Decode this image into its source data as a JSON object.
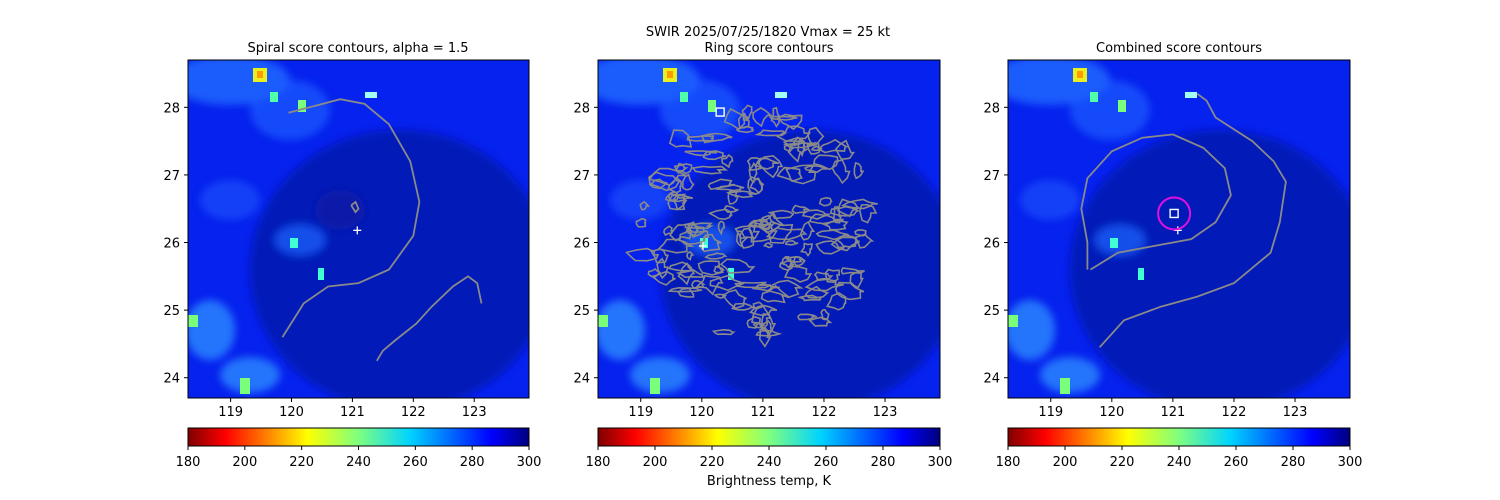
{
  "figure": {
    "suptitle": "SWIR  2025/07/25/1820    Vmax = 25 kt"
  },
  "chart_data": [
    {
      "type": "heatmap",
      "title": "Spiral score contours, alpha =  1.5",
      "xlim": [
        118.3,
        123.9
      ],
      "ylim": [
        23.7,
        28.7
      ],
      "xticks": [
        119,
        120,
        121,
        122,
        123
      ],
      "yticks": [
        24,
        25,
        26,
        27,
        28
      ],
      "colorbar": {
        "ticks": [
          180,
          200,
          220,
          240,
          260,
          280,
          300
        ],
        "range": [
          180,
          300
        ],
        "label": ""
      },
      "markers": [
        {
          "kind": "plus",
          "x": 121.08,
          "y": 26.18,
          "color": "#ffffff"
        }
      ],
      "contours": [
        [
          [
            119.85,
            24.6
          ],
          [
            120.2,
            25.1
          ],
          [
            120.6,
            25.35
          ],
          [
            121.1,
            25.4
          ],
          [
            121.6,
            25.6
          ],
          [
            122.0,
            26.1
          ],
          [
            122.1,
            26.6
          ],
          [
            121.95,
            27.2
          ],
          [
            121.6,
            27.75
          ],
          [
            121.2,
            28.05
          ],
          [
            120.8,
            28.12
          ],
          [
            120.3,
            28.0
          ],
          [
            119.95,
            27.92
          ]
        ],
        [
          [
            121.4,
            24.25
          ],
          [
            121.5,
            24.4
          ],
          [
            121.7,
            24.55
          ],
          [
            122.05,
            24.8
          ],
          [
            122.3,
            25.05
          ],
          [
            122.65,
            25.35
          ],
          [
            122.9,
            25.5
          ],
          [
            123.05,
            25.4
          ],
          [
            123.12,
            25.1
          ]
        ],
        [
          [
            120.98,
            26.55
          ],
          [
            121.05,
            26.6
          ],
          [
            121.1,
            26.5
          ],
          [
            121.05,
            26.45
          ],
          [
            120.98,
            26.55
          ]
        ]
      ]
    },
    {
      "type": "heatmap",
      "title": "Ring score contours",
      "xlim": [
        118.3,
        123.9
      ],
      "ylim": [
        23.7,
        28.7
      ],
      "xticks": [
        119,
        120,
        121,
        122,
        123
      ],
      "yticks": [
        24,
        25,
        26,
        27,
        28
      ],
      "colorbar": {
        "ticks": [
          180,
          200,
          220,
          240,
          260,
          280,
          300
        ],
        "range": [
          180,
          300
        ],
        "label": "Brightness temp, K"
      },
      "markers": [
        {
          "kind": "square",
          "x": 120.3,
          "y": 27.93,
          "color": "#ffffff"
        },
        {
          "kind": "plus",
          "x": 120.02,
          "y": 25.95,
          "color": "#ffffff"
        }
      ],
      "ring_region": {
        "center": [
          120.9,
          26.25
        ],
        "radius": [
          2.0,
          1.75
        ]
      },
      "contours": []
    },
    {
      "type": "heatmap",
      "title": "Combined score contours",
      "xlim": [
        118.3,
        123.9
      ],
      "ylim": [
        23.7,
        28.7
      ],
      "xticks": [
        119,
        120,
        121,
        122,
        123
      ],
      "yticks": [
        24,
        25,
        26,
        27,
        28
      ],
      "colorbar": {
        "ticks": [
          180,
          200,
          220,
          240,
          260,
          280,
          300
        ],
        "range": [
          180,
          300
        ],
        "label": ""
      },
      "markers": [
        {
          "kind": "square",
          "x": 121.02,
          "y": 26.43,
          "color": "#ffffff"
        },
        {
          "kind": "plus",
          "x": 121.08,
          "y": 26.18,
          "color": "#ffffff"
        },
        {
          "kind": "circle",
          "x": 121.02,
          "y": 26.43,
          "color": "#e010e0"
        }
      ],
      "contours": [
        [
          [
            119.65,
            25.6
          ],
          [
            120.1,
            25.85
          ],
          [
            120.7,
            25.95
          ],
          [
            121.3,
            26.05
          ],
          [
            121.7,
            26.3
          ],
          [
            121.95,
            26.7
          ],
          [
            121.85,
            27.1
          ],
          [
            121.5,
            27.4
          ],
          [
            121.0,
            27.6
          ],
          [
            120.5,
            27.55
          ],
          [
            120.0,
            27.35
          ],
          [
            119.6,
            26.95
          ],
          [
            119.5,
            26.5
          ],
          [
            119.6,
            26.0
          ],
          [
            119.6,
            25.6
          ]
        ],
        [
          [
            119.8,
            24.45
          ],
          [
            120.2,
            24.85
          ],
          [
            120.8,
            25.05
          ],
          [
            121.4,
            25.2
          ],
          [
            122.0,
            25.4
          ],
          [
            122.6,
            25.85
          ],
          [
            122.75,
            26.3
          ],
          [
            122.85,
            26.9
          ],
          [
            122.65,
            27.2
          ],
          [
            122.3,
            27.5
          ],
          [
            121.7,
            27.85
          ],
          [
            121.55,
            28.1
          ],
          [
            121.4,
            28.2
          ]
        ]
      ]
    }
  ]
}
